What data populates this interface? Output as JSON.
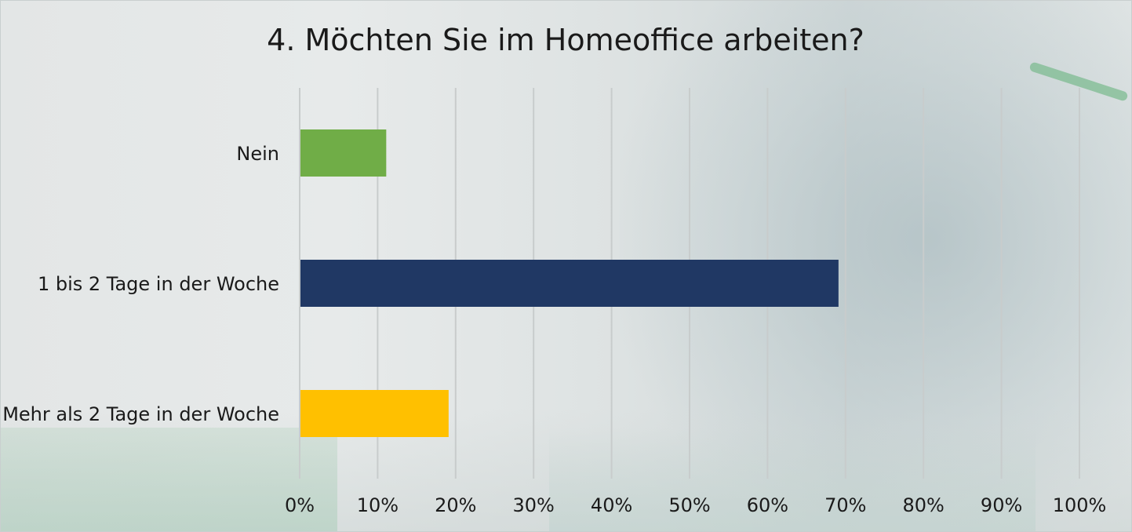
{
  "chart_data": {
    "type": "bar",
    "orientation": "horizontal",
    "title": "4. Möchten Sie im Homeoffice arbeiten?",
    "categories": [
      "Nein",
      "1 bis 2 Tage in der Woche",
      "Mehr als 2 Tage in der Woche"
    ],
    "values": [
      11,
      69,
      19
    ],
    "colors": [
      "#70ad47",
      "#203864",
      "#ffc000"
    ],
    "xlim": [
      0,
      100
    ],
    "xticks": [
      "0%",
      "10%",
      "20%",
      "30%",
      "40%",
      "50%",
      "60%",
      "70%",
      "80%",
      "90%",
      "100%"
    ],
    "grid": "vertical",
    "text_color": "#1a1a1a",
    "grid_color": "#c8cccc"
  }
}
